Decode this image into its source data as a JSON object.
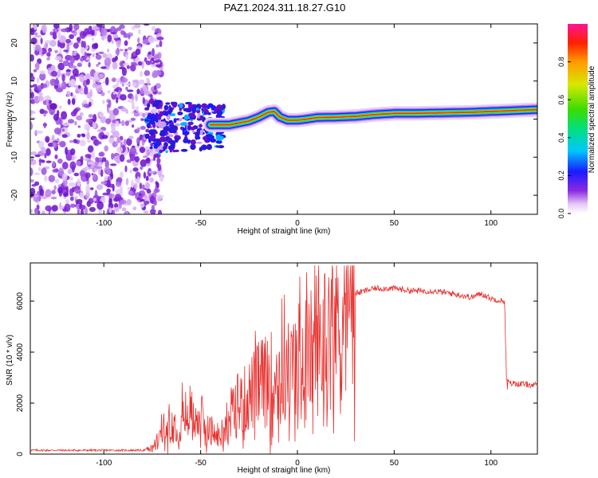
{
  "figure": {
    "title": "PAZ1.2024.311.18.27.G10"
  },
  "chart_data": [
    {
      "type": "heatmap",
      "xlabel": "Height of straight line (km)",
      "ylabel": "Frequency (Hz)",
      "xlim": [
        -138,
        124
      ],
      "ylim": [
        -25,
        25
      ],
      "xticks": [
        -100,
        -50,
        0,
        50,
        100
      ],
      "yticks": [
        -20,
        -10,
        0,
        10,
        20
      ],
      "colorbar": {
        "label": "Normalized spectral amplitude",
        "range": [
          0,
          1
        ],
        "ticks": [
          0.0,
          0.2,
          0.4,
          0.6,
          0.8
        ],
        "tick_labels": [
          "0.0",
          "0.2",
          "0.4",
          "0.6",
          "0.8"
        ]
      },
      "ridge": {
        "description_points_x": [
          -45,
          -40,
          -35,
          -30,
          -25,
          -20,
          -15,
          -12,
          -9,
          -5,
          0,
          5,
          10,
          20,
          30,
          40,
          50,
          60,
          70,
          80,
          90,
          100,
          110,
          120,
          124
        ],
        "description_points_y": [
          -1.5,
          -1.5,
          -1.5,
          -1.0,
          -0.5,
          0.5,
          1.8,
          2.0,
          0.5,
          -0.3,
          -0.3,
          0.0,
          0.4,
          0.5,
          0.7,
          1.2,
          1.5,
          1.5,
          1.6,
          1.7,
          1.8,
          2.0,
          2.2,
          2.4,
          2.5
        ]
      },
      "noise_region_x": [
        -138,
        -78
      ]
    },
    {
      "type": "line",
      "xlabel": "Height of straight line (km)",
      "ylabel": "SNR (10 * v/v)",
      "xlim": [
        -138,
        124
      ],
      "ylim": [
        0,
        7500
      ],
      "xticks": [
        -100,
        -50,
        0,
        50,
        100
      ],
      "yticks": [
        0,
        2000,
        4000,
        6000
      ],
      "series": [
        {
          "color": "#e8312f",
          "envelope_x": [
            -138,
            -80,
            -75,
            -70,
            -60,
            -55,
            -50,
            -45,
            -40,
            -35,
            -30,
            -20,
            -10,
            0,
            10,
            20,
            30,
            40,
            50,
            60,
            70,
            80,
            90,
            95,
            100,
            107,
            108,
            115,
            124
          ],
          "envelope_y": [
            150,
            150,
            200,
            800,
            1400,
            1700,
            1200,
            900,
            600,
            1400,
            1900,
            2700,
            3100,
            3400,
            4200,
            5200,
            6300,
            6500,
            6500,
            6400,
            6400,
            6300,
            6150,
            6300,
            6100,
            6000,
            2800,
            2750,
            2700
          ]
        }
      ]
    }
  ]
}
